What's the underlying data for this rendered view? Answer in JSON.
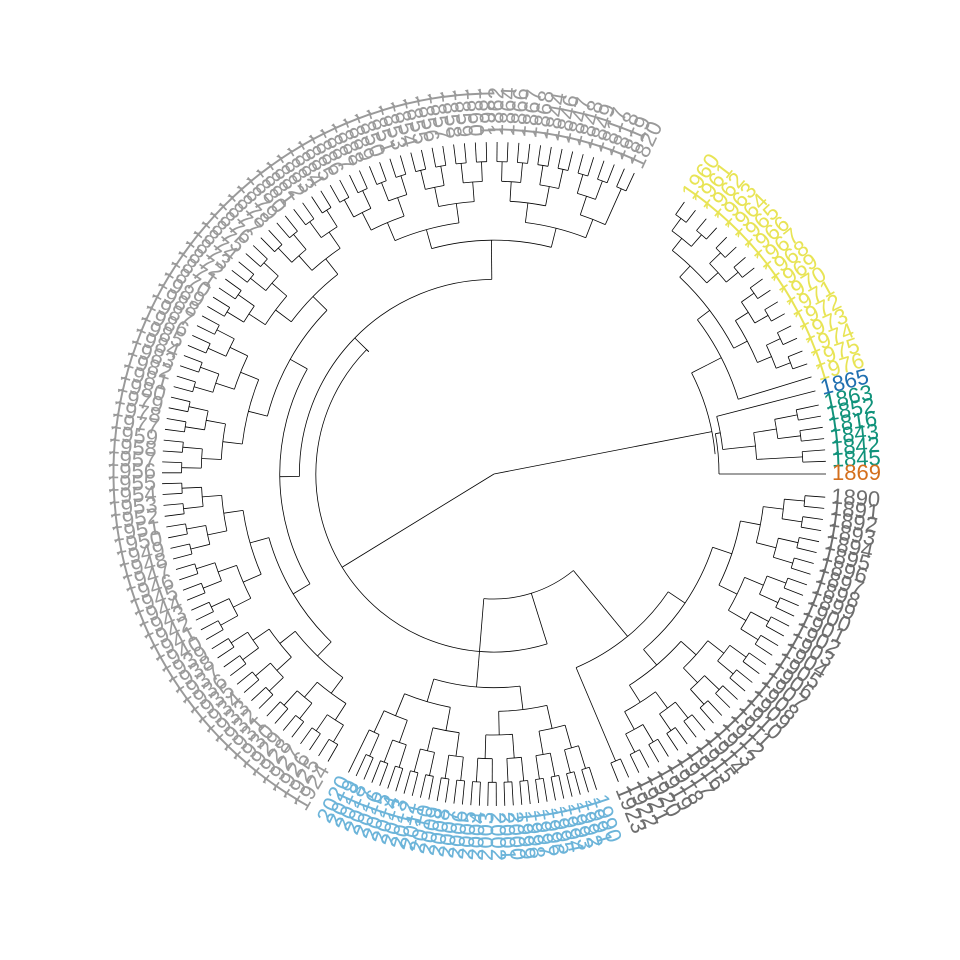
{
  "diagram": {
    "type": "circular-dendrogram",
    "label_colors": {
      "yellow": "#e8e455",
      "blue": "#1f6fb0",
      "teal": "#10927a",
      "orange": "#d46f1c",
      "dark_gray": "#6e6e6e",
      "light_blue": "#6cb4d9",
      "gray": "#9a9a9a"
    },
    "clusters": [
      {
        "id": "yellow",
        "color": "#e8e455",
        "labels": [
          "1960",
          "1961",
          "1962",
          "1963",
          "1964",
          "1965",
          "1966",
          "1967",
          "1968",
          "1969",
          "1970",
          "1971",
          "1972",
          "1973",
          "1974",
          "1975",
          "1976"
        ]
      },
      {
        "id": "blue",
        "color": "#1f6fb0",
        "labels": [
          "1865"
        ]
      },
      {
        "id": "teal",
        "color": "#10927a",
        "labels": [
          "1863",
          "1852",
          "1816",
          "1843",
          "1842",
          "1845"
        ]
      },
      {
        "id": "orange",
        "color": "#d46f1c",
        "labels": [
          "1869"
        ]
      },
      {
        "id": "dark_gray",
        "color": "#6e6e6e",
        "labels": [
          "1890",
          "1891",
          "1892",
          "1893",
          "1894",
          "1895",
          "1896",
          "1897",
          "1898",
          "1899",
          "1900",
          "1901",
          "1902",
          "1903",
          "1904",
          "1905",
          "1906",
          "1907",
          "1908",
          "1909",
          "1910",
          "1911",
          "1912",
          "1913",
          "1914",
          "1915",
          "1916",
          "1917",
          "1918",
          "1919",
          "1920",
          "1921",
          "1922",
          "1923"
        ]
      },
      {
        "id": "light_blue",
        "color": "#6cb4d9",
        "labels": [
          "1990",
          "1991",
          "1992",
          "1993",
          "1994",
          "1995",
          "1996",
          "1997",
          "1998",
          "1999",
          "2000",
          "2001",
          "2002",
          "2003",
          "2004",
          "2005",
          "2006",
          "2007",
          "2008",
          "2009",
          "2010",
          "2011",
          "2012",
          "2013",
          "2014",
          "2015",
          "2016",
          "2017",
          "2018",
          "2019",
          "2020"
        ]
      },
      {
        "id": "gray",
        "color": "#9a9a9a",
        "labels": [
          "1924",
          "1925",
          "1926",
          "1927",
          "1928",
          "1929",
          "1930",
          "1931",
          "1932",
          "1933",
          "1934",
          "1935",
          "1936",
          "1937",
          "1938",
          "1939",
          "1940",
          "1941",
          "1942",
          "1943",
          "1944",
          "1945",
          "1946",
          "1947",
          "1948",
          "1949",
          "1950",
          "1951",
          "1952",
          "1953",
          "1954",
          "1955",
          "1956",
          "1957",
          "1958",
          "1959",
          "1977",
          "1978",
          "1979",
          "1980",
          "1981",
          "1982",
          "1983",
          "1984",
          "1985",
          "1986",
          "1987",
          "1988",
          "1989",
          "1870",
          "1871",
          "1872",
          "1873",
          "1874",
          "1875",
          "1876",
          "1877",
          "1878",
          "1879",
          "1880",
          "1881",
          "1882",
          "1883",
          "1884",
          "1885",
          "1886",
          "1887",
          "1888",
          "1889",
          "1850",
          "1851",
          "1853",
          "1854",
          "1855",
          "1856",
          "1857",
          "1858",
          "1859",
          "1860",
          "1861",
          "1862",
          "1864",
          "1866",
          "1867",
          "1868",
          "1844",
          "1846",
          "1847",
          "1848",
          "1849",
          "1817",
          "1818",
          "1819",
          "1820"
        ]
      }
    ]
  }
}
